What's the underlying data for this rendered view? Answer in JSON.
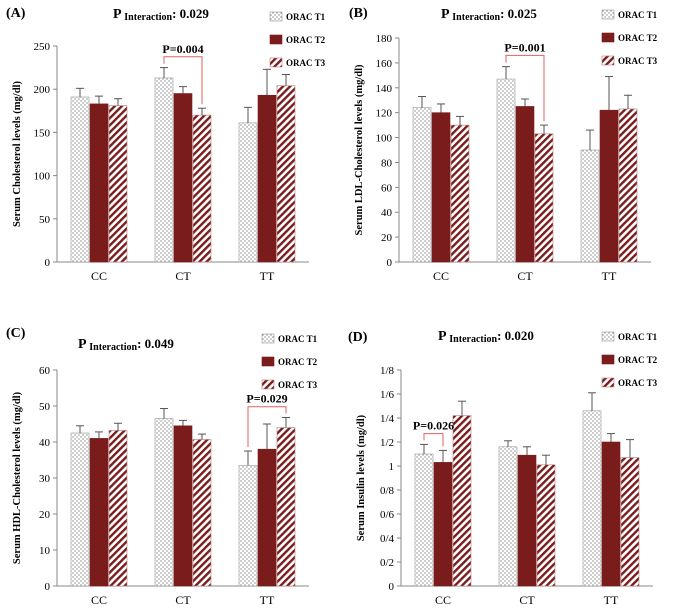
{
  "colors": {
    "t1_pattern": "#555555",
    "t2_fill": "#7a1c1c",
    "t3_stripe": "#7a1c1c",
    "axis": "#888888",
    "error_bar": "#555555",
    "annotation": "#e06060",
    "text": "#000000"
  },
  "legend_items": [
    "ORAC T1",
    "ORAC T2",
    "ORAC T3"
  ],
  "chart_data": [
    {
      "id": "A",
      "type": "bar",
      "panel_label": "(A)",
      "interaction_prefix": "P",
      "interaction_sub": "Interaction",
      "interaction_value": ": 0.029",
      "ylabel": "Serum Cholesterol levels (mg/dl)",
      "categories": [
        "CC",
        "CT",
        "TT"
      ],
      "ylim": [
        0,
        250
      ],
      "yticks": [
        "0",
        "50",
        "100",
        "150",
        "200",
        "250"
      ],
      "series": [
        {
          "name": "ORAC T1",
          "values": [
            191,
            213,
            161
          ],
          "errors": [
            10,
            12,
            18
          ]
        },
        {
          "name": "ORAC T2",
          "values": [
            183,
            195,
            193
          ],
          "errors": [
            9,
            8,
            30
          ]
        },
        {
          "name": "ORAC T3",
          "values": [
            181,
            170,
            204
          ],
          "errors": [
            8,
            8,
            13
          ]
        }
      ],
      "annotation": {
        "text": "P=0.004",
        "category": 1,
        "from_series": 0,
        "to_series": 2
      }
    },
    {
      "id": "B",
      "type": "bar",
      "panel_label": "(B)",
      "interaction_prefix": "P",
      "interaction_sub": "Interaction",
      "interaction_value": ": 0.025",
      "ylabel": "Serum LDL-Cholesterol levels (mg/dl)",
      "categories": [
        "CC",
        "CT",
        "TT"
      ],
      "ylim": [
        0,
        180
      ],
      "yticks": [
        "0",
        "20",
        "40",
        "60",
        "80",
        "100",
        "120",
        "140",
        "160",
        "180"
      ],
      "series": [
        {
          "name": "ORAC T1",
          "values": [
            124,
            147,
            90
          ],
          "errors": [
            9,
            10,
            16
          ]
        },
        {
          "name": "ORAC T2",
          "values": [
            120,
            125,
            122
          ],
          "errors": [
            7,
            6,
            27
          ]
        },
        {
          "name": "ORAC T3",
          "values": [
            110,
            103,
            123
          ],
          "errors": [
            7,
            7,
            11
          ]
        }
      ],
      "annotation": {
        "text": "P=0.001",
        "category": 1,
        "from_series": 0,
        "to_series": 2
      }
    },
    {
      "id": "C",
      "type": "bar",
      "panel_label": "(C)",
      "interaction_prefix": "P",
      "interaction_sub": "Interaction",
      "interaction_value": ": 0.049",
      "ylabel": "Serum HDL-Cholesterol levels (mg/dl)",
      "categories": [
        "CC",
        "CT",
        "TT"
      ],
      "ylim": [
        0,
        60
      ],
      "yticks": [
        "0",
        "10",
        "20",
        "30",
        "40",
        "50",
        "60"
      ],
      "series": [
        {
          "name": "ORAC T1",
          "values": [
            42.5,
            46.5,
            33.5
          ],
          "errors": [
            2,
            2.8,
            4
          ]
        },
        {
          "name": "ORAC T2",
          "values": [
            41,
            44.5,
            38
          ],
          "errors": [
            1.8,
            1.5,
            7
          ]
        },
        {
          "name": "ORAC T3",
          "values": [
            43.2,
            40.7,
            44
          ],
          "errors": [
            2,
            1.5,
            2.8
          ]
        }
      ],
      "annotation": {
        "text": "P=0.029",
        "category": 2,
        "from_series": 0,
        "to_series": 2
      }
    },
    {
      "id": "D",
      "type": "bar",
      "panel_label": "(D)",
      "interaction_prefix": "P",
      "interaction_sub": "Interaction",
      "interaction_value": ": 0.020",
      "ylabel": "Serum Insulin levels (mg/dl)",
      "categories": [
        "CC",
        "CT",
        "TT"
      ],
      "ylim": [
        0,
        1.8
      ],
      "yticks": [
        "0",
        "0/2",
        "0/4",
        "0/6",
        "0/8",
        "1",
        "1/2",
        "1/4",
        "1/6",
        "1/8"
      ],
      "series": [
        {
          "name": "ORAC T1",
          "values": [
            1.1,
            1.16,
            1.46
          ],
          "errors": [
            0.08,
            0.05,
            0.15
          ]
        },
        {
          "name": "ORAC T2",
          "values": [
            1.03,
            1.09,
            1.2
          ],
          "errors": [
            0.1,
            0.07,
            0.07
          ]
        },
        {
          "name": "ORAC T3",
          "values": [
            1.42,
            1.01,
            1.07
          ],
          "errors": [
            0.12,
            0.08,
            0.15
          ]
        }
      ],
      "annotation": {
        "text": "P=0.026",
        "category": 0,
        "from_series": 0,
        "to_series": 1
      }
    }
  ]
}
